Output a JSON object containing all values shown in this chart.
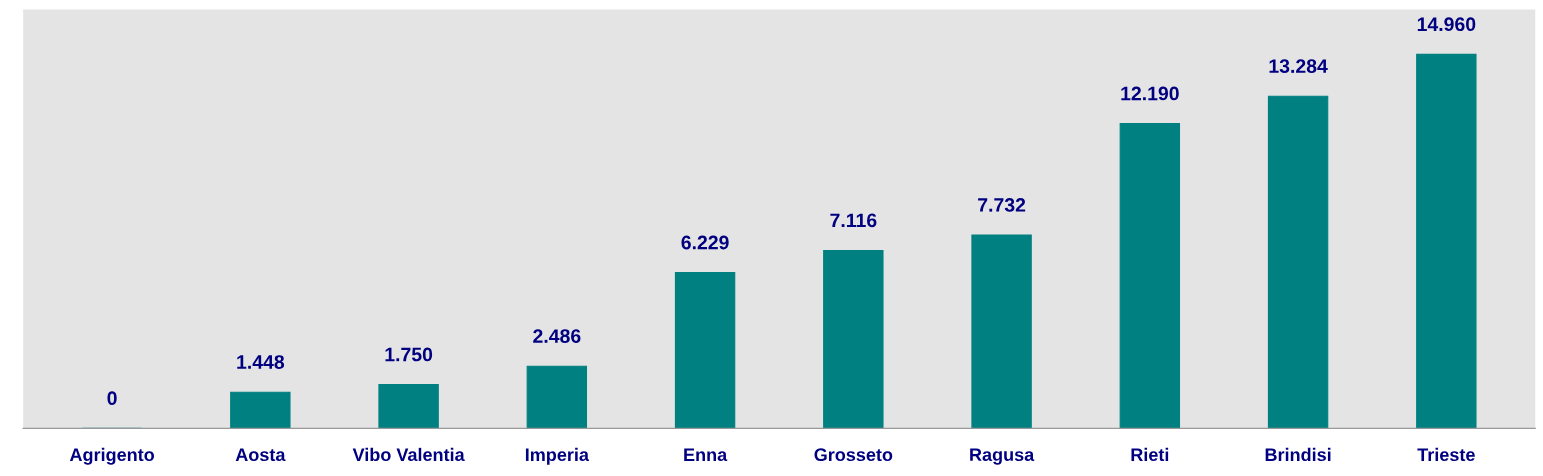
{
  "chart_data": {
    "type": "bar",
    "categories": [
      "Agrigento",
      "Aosta",
      "Vibo Valentia",
      "Imperia",
      "Enna",
      "Grosseto",
      "Ragusa",
      "Rieti",
      "Brindisi",
      "Trieste"
    ],
    "values": [
      0,
      1448,
      1750,
      2486,
      6229,
      7116,
      7732,
      12190,
      13284,
      14960
    ],
    "value_labels": [
      "0",
      "1.448",
      "1.750",
      "2.486",
      "6.229",
      "7.116",
      "7.732",
      "12.190",
      "13.284",
      "14.960"
    ],
    "color": "#008080",
    "grid": false,
    "legend": false
  }
}
